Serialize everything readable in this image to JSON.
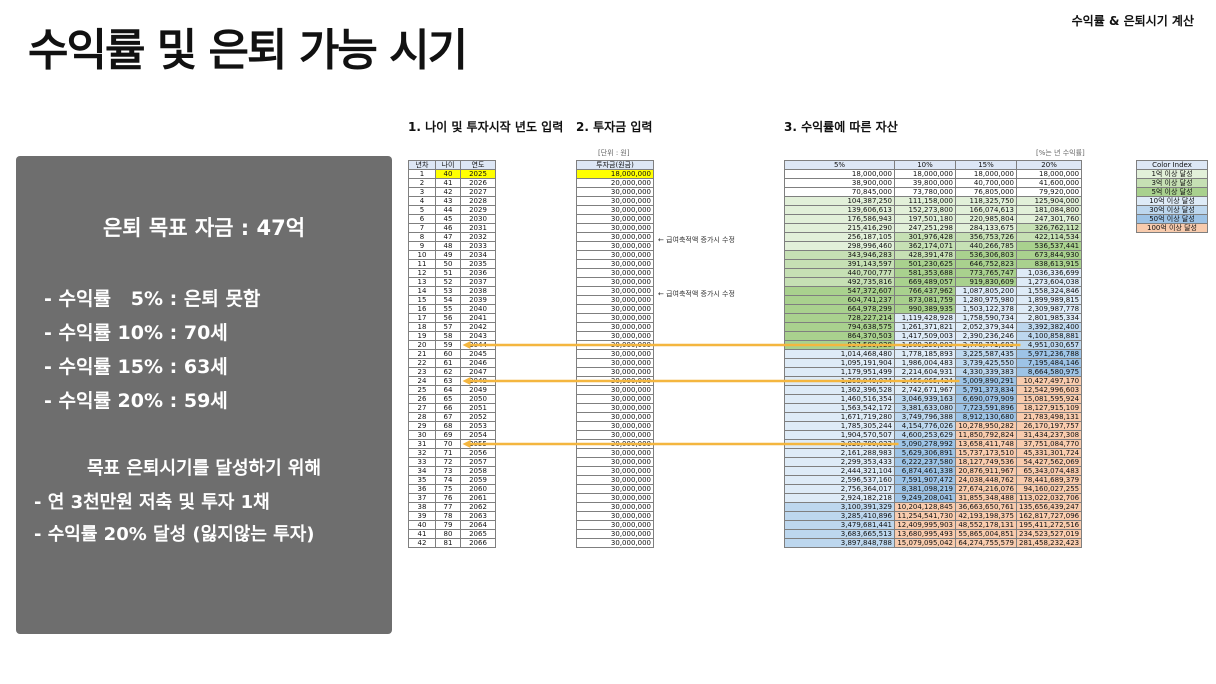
{
  "title": "수익률 및 은퇴 가능 시기",
  "subtitle": "수익률 & 은퇴시기 계산",
  "panel": {
    "goal": "은퇴 목표 자금 : 47억",
    "results": [
      "- 수익률   5% : 은퇴 못함",
      "- 수익률 10% : 70세",
      "- 수익률 15% : 63세",
      "- 수익률 20% : 59세"
    ],
    "heading": "목표 은퇴시기를 달성하기 위해",
    "actions": [
      "- 연 3천만원 저축 및 투자 1채",
      "- 수익률 20% 달성 (잃지않는 투자)"
    ]
  },
  "sheet": {
    "section1": "1. 나이 및 투자시작 년도 입력",
    "section2": "2. 투자금 입력",
    "section3": "3. 수익률에 따른 자산",
    "unit_left": "[단위 : 원]",
    "unit_right": "[%는 년 수익률]",
    "cols1": [
      "년차",
      "나이",
      "연도"
    ],
    "col2": "투자금(원금)",
    "cols3": [
      "5%",
      "10%",
      "15%",
      "20%"
    ],
    "note": "← 급여축적액 증가시 수정",
    "rows": [
      [
        "1",
        "40",
        "2025",
        "18,000,000",
        "18,000,000",
        "18,000,000",
        "18,000,000",
        "18,000,000"
      ],
      [
        "2",
        "41",
        "2026",
        "20,000,000",
        "38,900,000",
        "39,800,000",
        "40,700,000",
        "41,600,000"
      ],
      [
        "3",
        "42",
        "2027",
        "30,000,000",
        "70,845,000",
        "73,780,000",
        "76,805,000",
        "79,920,000"
      ],
      [
        "4",
        "43",
        "2028",
        "30,000,000",
        "104,387,250",
        "111,158,000",
        "118,325,750",
        "125,904,000"
      ],
      [
        "5",
        "44",
        "2029",
        "30,000,000",
        "139,606,613",
        "152,273,800",
        "166,074,613",
        "181,084,800"
      ],
      [
        "6",
        "45",
        "2030",
        "30,000,000",
        "176,586,943",
        "197,501,180",
        "220,985,804",
        "247,301,760"
      ],
      [
        "7",
        "46",
        "2031",
        "30,000,000",
        "215,416,290",
        "247,251,298",
        "284,133,675",
        "326,762,112"
      ],
      [
        "8",
        "47",
        "2032",
        "30,000,000",
        "256,187,105",
        "301,976,428",
        "356,753,726",
        "422,114,534"
      ],
      [
        "9",
        "48",
        "2033",
        "30,000,000",
        "298,996,460",
        "362,174,071",
        "440,266,785",
        "536,537,441"
      ],
      [
        "10",
        "49",
        "2034",
        "30,000,000",
        "343,946,283",
        "428,391,478",
        "536,306,803",
        "673,844,930"
      ],
      [
        "11",
        "50",
        "2035",
        "30,000,000",
        "391,143,597",
        "501,230,625",
        "646,752,823",
        "838,613,915"
      ],
      [
        "12",
        "51",
        "2036",
        "30,000,000",
        "440,700,777",
        "581,353,688",
        "773,765,747",
        "1,036,336,699"
      ],
      [
        "13",
        "52",
        "2037",
        "30,000,000",
        "492,735,816",
        "669,489,057",
        "919,830,609",
        "1,273,604,038"
      ],
      [
        "14",
        "53",
        "2038",
        "30,000,000",
        "547,372,607",
        "766,437,962",
        "1,087,805,200",
        "1,558,324,846"
      ],
      [
        "15",
        "54",
        "2039",
        "30,000,000",
        "604,741,237",
        "873,081,759",
        "1,280,975,980",
        "1,899,989,815"
      ],
      [
        "16",
        "55",
        "2040",
        "30,000,000",
        "664,978,299",
        "990,389,935",
        "1,503,122,378",
        "2,309,987,778"
      ],
      [
        "17",
        "56",
        "2041",
        "30,000,000",
        "728,227,214",
        "1,119,428,928",
        "1,758,590,734",
        "2,801,985,334"
      ],
      [
        "18",
        "57",
        "2042",
        "30,000,000",
        "794,638,575",
        "1,261,371,821",
        "2,052,379,344",
        "3,392,382,400"
      ],
      [
        "19",
        "58",
        "2043",
        "30,000,000",
        "864,370,503",
        "1,417,509,003",
        "2,390,236,246",
        "4,100,858,881"
      ],
      [
        "20",
        "59",
        "2044",
        "30,000,000",
        "937,589,028",
        "1,589,259,903",
        "2,778,771,683",
        "4,951,030,657"
      ],
      [
        "21",
        "60",
        "2045",
        "30,000,000",
        "1,014,468,480",
        "1,778,185,893",
        "3,225,587,435",
        "5,971,236,788"
      ],
      [
        "22",
        "61",
        "2046",
        "30,000,000",
        "1,095,191,904",
        "1,986,004,483",
        "3,739,425,550",
        "7,195,484,146"
      ],
      [
        "23",
        "62",
        "2047",
        "30,000,000",
        "1,179,951,499",
        "2,214,604,931",
        "4,330,339,383",
        "8,664,580,975"
      ],
      [
        "24",
        "63",
        "2048",
        "30,000,000",
        "1,268,949,074",
        "2,466,065,424",
        "5,009,890,291",
        "10,427,497,170"
      ],
      [
        "25",
        "64",
        "2049",
        "30,000,000",
        "1,362,396,528",
        "2,742,671,967",
        "5,791,373,834",
        "12,542,996,603"
      ],
      [
        "26",
        "65",
        "2050",
        "30,000,000",
        "1,460,516,354",
        "3,046,939,163",
        "6,690,079,909",
        "15,081,595,924"
      ],
      [
        "27",
        "66",
        "2051",
        "30,000,000",
        "1,563,542,172",
        "3,381,633,080",
        "7,723,591,896",
        "18,127,915,109"
      ],
      [
        "28",
        "67",
        "2052",
        "30,000,000",
        "1,671,719,280",
        "3,749,796,388",
        "8,912,130,680",
        "21,783,498,131"
      ],
      [
        "29",
        "68",
        "2053",
        "30,000,000",
        "1,785,305,244",
        "4,154,776,026",
        "10,278,950,282",
        "26,170,197,757"
      ],
      [
        "30",
        "69",
        "2054",
        "30,000,000",
        "1,904,570,507",
        "4,600,253,629",
        "11,850,792,824",
        "31,434,237,308"
      ],
      [
        "31",
        "70",
        "2055",
        "30,000,000",
        "2,029,799,032",
        "5,090,278,992",
        "13,658,411,748",
        "37,751,084,770"
      ],
      [
        "32",
        "71",
        "2056",
        "30,000,000",
        "2,161,288,983",
        "5,629,306,891",
        "15,737,173,510",
        "45,331,301,724"
      ],
      [
        "33",
        "72",
        "2057",
        "30,000,000",
        "2,299,353,433",
        "6,222,237,580",
        "18,127,749,536",
        "54,427,562,069"
      ],
      [
        "34",
        "73",
        "2058",
        "30,000,000",
        "2,444,321,104",
        "6,874,461,338",
        "20,876,911,967",
        "65,343,074,483"
      ],
      [
        "35",
        "74",
        "2059",
        "30,000,000",
        "2,596,537,160",
        "7,591,907,472",
        "24,038,448,762",
        "78,441,689,379"
      ],
      [
        "36",
        "75",
        "2060",
        "30,000,000",
        "2,756,364,017",
        "8,381,098,219",
        "27,674,216,076",
        "94,160,027,255"
      ],
      [
        "37",
        "76",
        "2061",
        "30,000,000",
        "2,924,182,218",
        "9,249,208,041",
        "31,855,348,488",
        "113,022,032,706"
      ],
      [
        "38",
        "77",
        "2062",
        "30,000,000",
        "3,100,391,329",
        "10,204,128,845",
        "36,663,650,761",
        "135,656,439,247"
      ],
      [
        "39",
        "78",
        "2063",
        "30,000,000",
        "3,285,410,896",
        "11,254,541,730",
        "42,193,198,375",
        "162,817,727,096"
      ],
      [
        "40",
        "79",
        "2064",
        "30,000,000",
        "3,479,681,441",
        "12,409,995,903",
        "48,552,178,131",
        "195,411,272,516"
      ],
      [
        "41",
        "80",
        "2065",
        "30,000,000",
        "3,683,665,513",
        "13,680,995,493",
        "55,865,004,851",
        "234,523,527,019"
      ],
      [
        "42",
        "81",
        "2066",
        "30,000,000",
        "3,897,848,788",
        "15,079,095,042",
        "64,274,755,579",
        "281,458,232,423"
      ]
    ],
    "legend_title": "Color Index",
    "legend": [
      {
        "label": "1억 이상 달성",
        "color": "#e2f0d9"
      },
      {
        "label": "3억 이상 달성",
        "color": "#c6e0b4"
      },
      {
        "label": "5억 이상 달성",
        "color": "#a9d18e"
      },
      {
        "label": "10억 이상 달성",
        "color": "#deebf7"
      },
      {
        "label": "30억 이상 달성",
        "color": "#bdd7ee"
      },
      {
        "label": "50억 이상 달성",
        "color": "#9dc3e6"
      },
      {
        "label": "100억 이상 달성",
        "color": "#f8cbad"
      }
    ],
    "highlight_color": "#ffff00",
    "arrow_color": "#f4b63f"
  }
}
